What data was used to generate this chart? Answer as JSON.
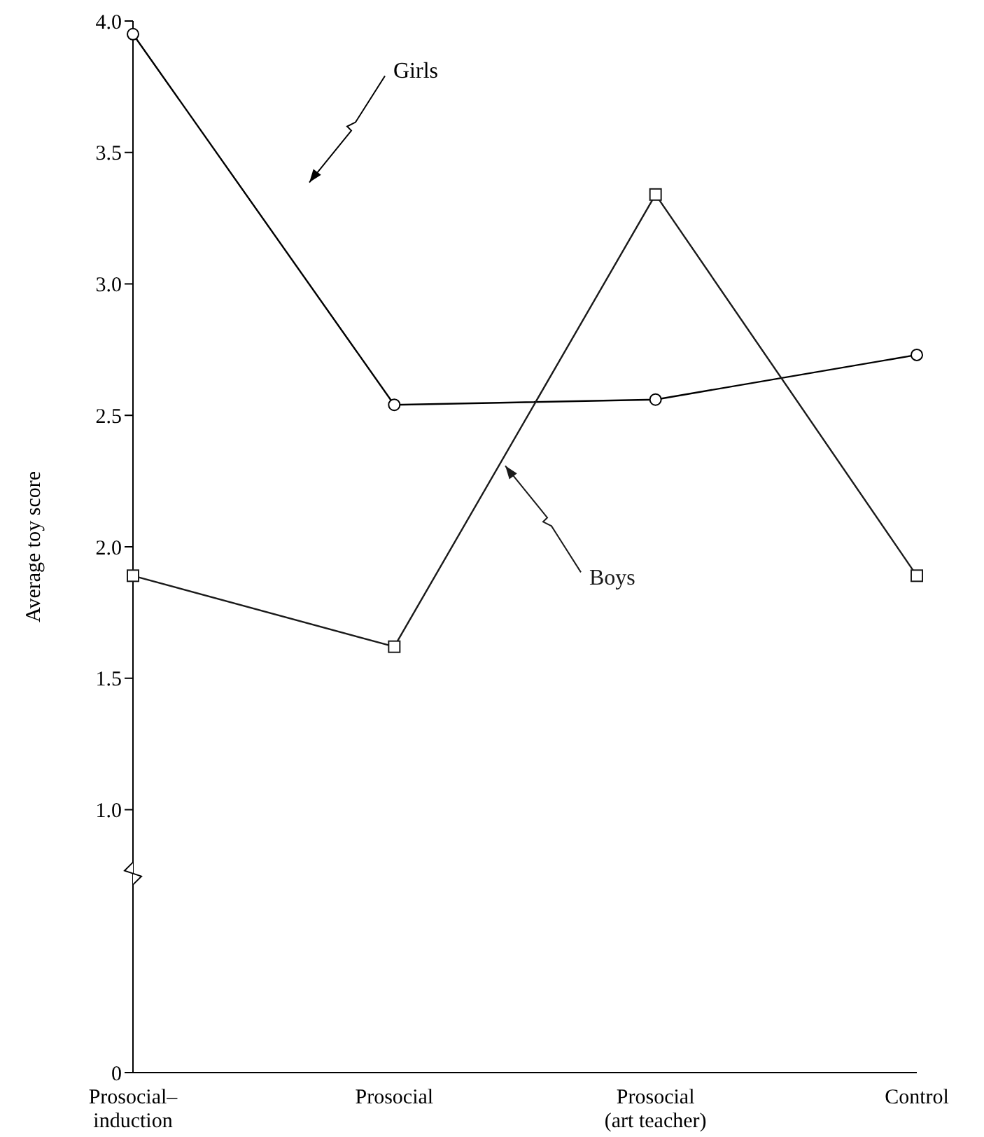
{
  "chart_data": {
    "type": "line",
    "ylabel": "Average toy score",
    "categories": [
      "Prosocial–\ninduction",
      "Prosocial",
      "Prosocial\n(art teacher)",
      "Control"
    ],
    "series": [
      {
        "name": "Girls",
        "color": "#000000",
        "marker": "circle",
        "values": [
          3.95,
          2.54,
          2.56,
          2.73
        ]
      },
      {
        "name": "Boys",
        "color": "#1a1a1a",
        "marker": "square",
        "values": [
          1.89,
          1.62,
          3.34,
          1.89
        ]
      }
    ],
    "ylim": [
      0,
      4.0
    ],
    "yticks": [
      0,
      {
        "value": 1,
        "label": "1.0"
      },
      1.5,
      {
        "value": 2,
        "label": "2.0"
      },
      2.5,
      {
        "value": 3,
        "label": "3.0"
      },
      3.5,
      {
        "value": 4,
        "label": "4.0"
      }
    ],
    "grid": false,
    "legend": false,
    "line_style": "solid"
  }
}
